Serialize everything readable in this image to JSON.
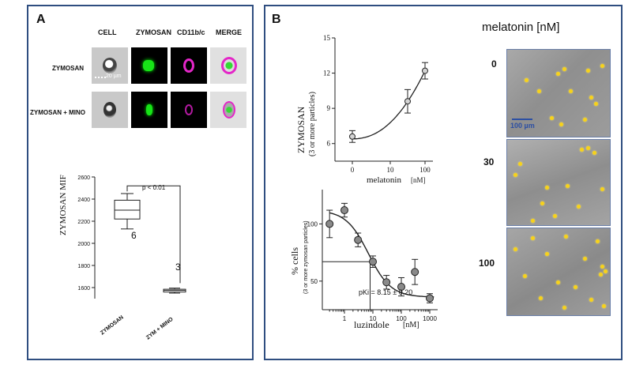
{
  "panel_a": {
    "label": "A",
    "column_headers": [
      "CELL",
      "ZYMOSAN",
      "CD11b/c",
      "MERGE"
    ],
    "row_labels": [
      "ZYMOSAN",
      "ZYMOSAN + MINO"
    ],
    "scale_bar": "20 µm",
    "boxplot": {
      "ylabel": "ZYMOSAN MIF",
      "yticks": [
        "1600",
        "1800",
        "2000",
        "2200",
        "2400",
        "2600"
      ],
      "categories": [
        "ZYMOSAN",
        "ZYM + MINO"
      ],
      "n_labels": [
        "6",
        "3"
      ],
      "pvalue": "p < 0.01"
    }
  },
  "panel_b": {
    "label": "B",
    "top_chart": {
      "ylabel_main": "ZYMOSAN",
      "ylabel_sub": "(3 or more particles)",
      "yticks": [
        "6",
        "9",
        "12",
        "15"
      ],
      "xticks": [
        "0",
        "10",
        "100"
      ],
      "xlabel": "melatonin",
      "xunit": "[nM]"
    },
    "bottom_chart": {
      "ylabel_main": "% cells",
      "ylabel_sub": "(3 or more zymosan particles)",
      "yticks": [
        "50",
        "100"
      ],
      "xticks": [
        "1",
        "10",
        "100",
        "1000"
      ],
      "xlabel": "luzindole",
      "xunit": "[nM]",
      "annotation": "pKi = 8.15 ± 0.20"
    },
    "micrographs": {
      "title": "melatonin [nM]",
      "labels": [
        "0",
        "30",
        "100"
      ],
      "scale_bar": "100 µm"
    }
  },
  "chart_data": [
    {
      "type": "box",
      "ylabel": "ZYMOSAN MIF",
      "ylim": [
        1500,
        2600
      ],
      "categories": [
        "ZYMOSAN",
        "ZYM + MINO"
      ],
      "boxes": [
        {
          "min": 2130,
          "q1": 2220,
          "median": 2300,
          "q3": 2390,
          "max": 2450,
          "n": 6
        },
        {
          "min": 1550,
          "q1": 1560,
          "median": 1575,
          "q3": 1585,
          "max": 1595,
          "n": 3
        }
      ],
      "annotations": [
        "p < 0.01"
      ]
    },
    {
      "type": "scatter",
      "xlabel": "melatonin [nM]",
      "ylabel": "ZYMOSAN (3 or more particles)",
      "ylim": [
        4.5,
        15
      ],
      "points": [
        {
          "x": 0,
          "y": 6.6,
          "err": 0.5
        },
        {
          "x": 30,
          "y": 9.6,
          "err": 1.0
        },
        {
          "x": 100,
          "y": 12.2,
          "err": 0.7
        }
      ]
    },
    {
      "type": "scatter",
      "xlabel": "luzindole [nM]",
      "ylabel": "% cells (3 or more zymosan particles)",
      "ylim": [
        25,
        130
      ],
      "x_scale": "log",
      "points": [
        {
          "x": 0.3,
          "y": 100,
          "err": 12
        },
        {
          "x": 1,
          "y": 112,
          "err": 6
        },
        {
          "x": 3,
          "y": 86,
          "err": 6
        },
        {
          "x": 10,
          "y": 67,
          "err": 5
        },
        {
          "x": 30,
          "y": 49,
          "err": 6
        },
        {
          "x": 100,
          "y": 45,
          "err": 8
        },
        {
          "x": 300,
          "y": 58,
          "err": 11
        },
        {
          "x": 1000,
          "y": 35,
          "err": 4
        }
      ],
      "fit": "sigmoid",
      "annotations": [
        "pKi = 8.15 ± 0.20"
      ]
    }
  ]
}
